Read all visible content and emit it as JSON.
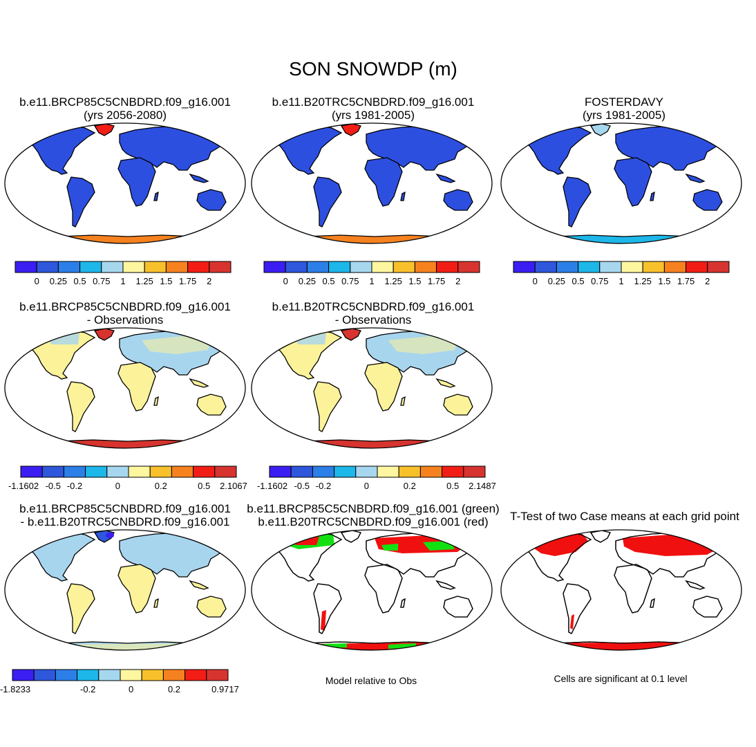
{
  "title": "SON SNOWDP (m)",
  "colors": {
    "ramp": [
      "#3b1ef2",
      "#2e57dc",
      "#2d7fe8",
      "#1db7ea",
      "#a6d7ef",
      "#fff6a0",
      "#f8c12c",
      "#f6821f",
      "#f21e16",
      "#d7342f"
    ],
    "land_blue": "#2d4fe0",
    "land_yellow": "#fbf29a",
    "land_lightblue": "#a8d5ee",
    "sig_red": "#f01010",
    "sig_green": "#12e012",
    "coast": "#000000"
  },
  "panels": [
    {
      "id": "p1",
      "title": [
        "b.e11.BRCP85C5CNBDRD.f09_g16.001",
        "(yrs 2056-2080)"
      ],
      "scheme": "abs_future",
      "colorbar": "cb1"
    },
    {
      "id": "p2",
      "title": [
        "b.e11.B20TRC5CNBDRD.f09_g16.001",
        "(yrs 1981-2005)"
      ],
      "scheme": "abs_hist",
      "colorbar": "cb1"
    },
    {
      "id": "p3",
      "title": [
        "FOSTERDAVY",
        "(yrs 1981-2005)"
      ],
      "scheme": "obs",
      "colorbar": "cb1"
    },
    {
      "id": "p4",
      "title": [
        "b.e11.BRCP85C5CNBDRD.f09_g16.001",
        "- Observations"
      ],
      "scheme": "diff_obs_future",
      "colorbar": "cb2"
    },
    {
      "id": "p5",
      "title": [
        "b.e11.B20TRC5CNBDRD.f09_g16.001",
        "- Observations"
      ],
      "scheme": "diff_obs_hist",
      "colorbar": "cb3"
    },
    {
      "id": "p7",
      "title": [
        "b.e11.BRCP85C5CNBDRD.f09_g16.001",
        "- b.e11.B20TRC5CNBDRD.f09_g16.001"
      ],
      "scheme": "diff_cases",
      "colorbar": "cb4"
    },
    {
      "id": "p8",
      "title": [
        "b.e11.BRCP85C5CNBDRD.f09_g16.001 (green)",
        "b.e11.B20TRC5CNBDRD.f09_g16.001 (red)"
      ],
      "scheme": "relative",
      "caption": "Model relative to Obs"
    },
    {
      "id": "p9",
      "title": [
        "T-Test of two Case means at each grid point"
      ],
      "scheme": "ttest",
      "caption": "Cells are significant at 0.1 level"
    }
  ],
  "colorbars": {
    "cb1": {
      "boxes": 10,
      "labels": [
        "0",
        "0.25",
        "0.5",
        "0.75",
        "1",
        "1.25",
        "1.5",
        "1.75",
        "2"
      ]
    },
    "cb2": {
      "boxes": 10,
      "labels": [
        "-1.1602",
        "-0.5",
        "-0.2",
        "",
        "0",
        "",
        "0.2",
        "",
        "0.5",
        "2.1067"
      ]
    },
    "cb3": {
      "boxes": 10,
      "labels": [
        "-1.1602",
        "-0.5",
        "-0.2",
        "",
        "0",
        "",
        "0.2",
        "",
        "0.5",
        "2.1487"
      ]
    },
    "cb4": {
      "boxes": 10,
      "labels": [
        "-1.8233",
        "",
        "",
        "-0.2",
        "",
        "0",
        "",
        "0.2",
        "",
        "0.9717"
      ]
    }
  }
}
